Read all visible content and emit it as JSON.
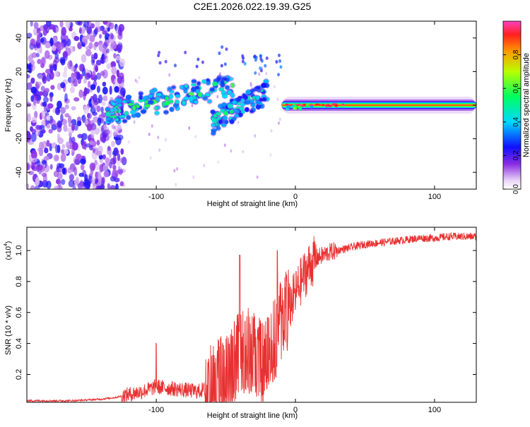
{
  "title": "C2E1.2026.022.19.39.G25",
  "chart_data": [
    {
      "type": "heatmap",
      "title": "C2E1.2026.022.19.39.G25",
      "xlabel": "Height of straight line (km)",
      "ylabel": "Frequency (Hz)",
      "xlim": [
        -193,
        130
      ],
      "ylim": [
        -50,
        50
      ],
      "xticks": [
        -100,
        0,
        100
      ],
      "yticks": [
        -40,
        -20,
        0,
        20,
        40
      ],
      "colorbar": {
        "label": "Normalized spectral amplitude",
        "range": [
          0,
          1
        ],
        "ticks": [
          0.0,
          0.2,
          0.4,
          0.6,
          0.8
        ]
      },
      "regions": [
        {
          "name": "noise",
          "x": [
            -193,
            -127
          ],
          "y": [
            -50,
            50
          ],
          "amplitude": 0.18
        },
        {
          "name": "upper-branch",
          "x": [
            -135,
            -45
          ],
          "y_start": -5,
          "y_end": 13,
          "amplitude": 0.45
        },
        {
          "name": "lower-branch",
          "x": [
            -60,
            -20
          ],
          "y_start": -10,
          "y_end": 8,
          "amplitude": 0.4
        },
        {
          "name": "carrier",
          "x": [
            -10,
            130
          ],
          "y": 0,
          "amplitude": 0.95
        }
      ]
    },
    {
      "type": "line",
      "xlabel": "Height of straight line (km)",
      "ylabel": "SNR (10 * v/v)",
      "yscale_label": "(x10",
      "yscale_exp": "4",
      "xlim": [
        -193,
        130
      ],
      "ylim": [
        0.02,
        1.15
      ],
      "xticks": [
        -100,
        0,
        100
      ],
      "yticks": [
        0.2,
        0.4,
        0.6,
        0.8,
        1.0
      ],
      "color": "#e83030",
      "series": [
        {
          "name": "SNR",
          "x": [
            -193,
            -160,
            -140,
            -130,
            -120,
            -110,
            -100,
            -90,
            -80,
            -70,
            -60,
            -50,
            -45,
            -40,
            -35,
            -30,
            -25,
            -20,
            -15,
            -10,
            -5,
            0,
            5,
            10,
            15,
            20,
            25,
            30,
            40,
            50,
            60,
            70,
            80,
            90,
            100,
            110,
            120,
            130
          ],
          "values": [
            0.03,
            0.03,
            0.04,
            0.05,
            0.07,
            0.09,
            0.12,
            0.11,
            0.1,
            0.09,
            0.12,
            0.2,
            0.26,
            0.33,
            0.36,
            0.32,
            0.28,
            0.3,
            0.42,
            0.55,
            0.62,
            0.72,
            0.82,
            0.9,
            0.95,
            0.97,
            0.99,
            1.0,
            1.02,
            1.04,
            1.05,
            1.06,
            1.07,
            1.08,
            1.08,
            1.09,
            1.09,
            1.09
          ]
        }
      ],
      "spikes": [
        {
          "x": -100,
          "value": 0.4
        },
        {
          "x": -40,
          "value": 0.97
        },
        {
          "x": -13,
          "value": 1.0
        }
      ]
    }
  ]
}
